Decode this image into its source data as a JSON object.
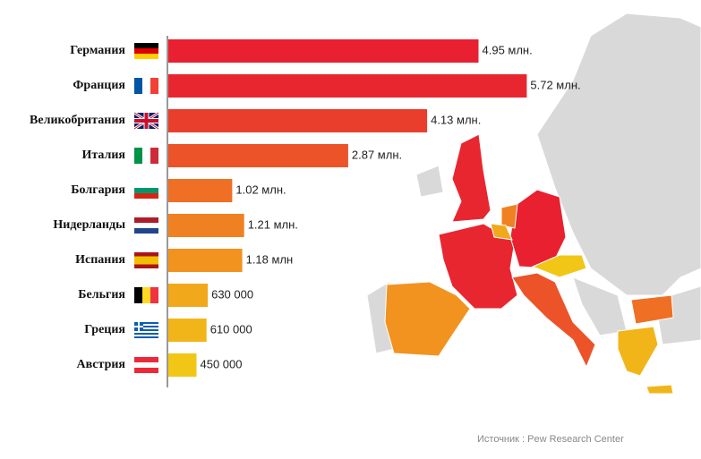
{
  "chart_data": {
    "type": "bar",
    "orientation": "horizontal",
    "categories": [
      "Германия",
      "Франция",
      "Великобритания",
      "Италия",
      "Болгария",
      "Нидерланды",
      "Испания",
      "Бельгия",
      "Греция",
      "Австрия"
    ],
    "values": [
      4950000,
      5720000,
      4130000,
      2870000,
      1020000,
      1210000,
      1180000,
      630000,
      610000,
      450000
    ],
    "value_labels": [
      "4.95 млн.",
      "5.72 млн.",
      "4.13 млн.",
      "2.87 млн.",
      "1.02 млн.",
      "1.21 млн.",
      "1.18 млн",
      "630 000",
      "610 000",
      "450 000"
    ],
    "colors": [
      "#e8202f",
      "#e8262f",
      "#ea3e2c",
      "#ec5328",
      "#ef6f24",
      "#f08122",
      "#f2931f",
      "#f2a81b",
      "#f2b519",
      "#f1c617"
    ],
    "source": "Источник :  Pew Research Center"
  }
}
